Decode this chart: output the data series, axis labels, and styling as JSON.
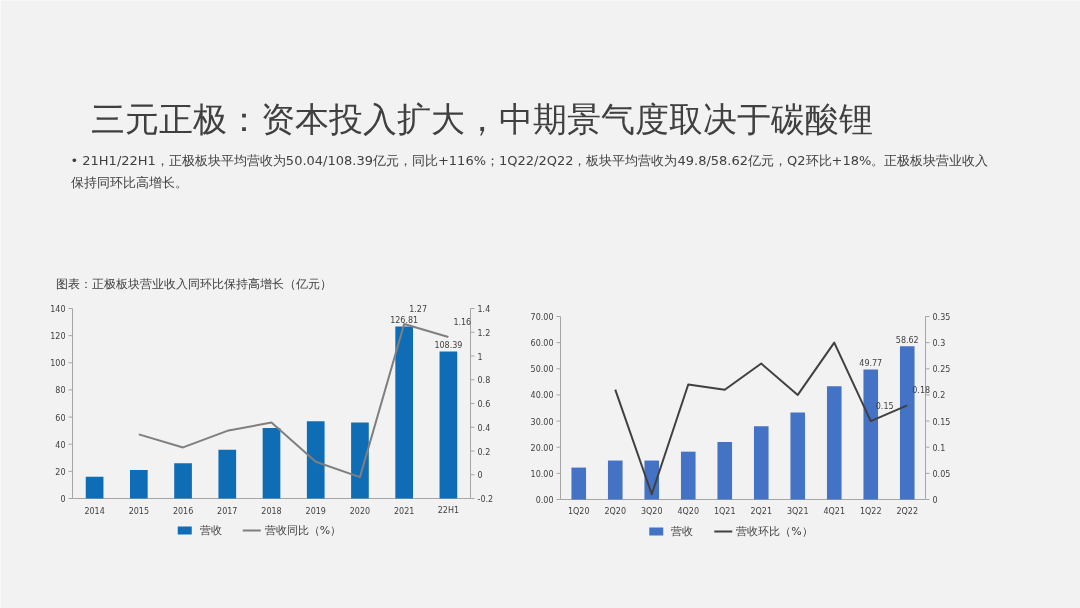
{
  "chart_data": [
    {
      "type": "bar",
      "title": "三元正极：资本投入扩大，中期景气度取决于碳酸锂",
      "subtitle": "• 21H1/22H1，正极板块平均营收为50.04/108.39亿元，同比+116%；1Q22/2Q22，板块平均营收为49.8/58.62亿元，Q2环比+18%。正极板块营业收入保持同环比高增长。",
      "annotations": [
        "图表：正极板块营业收入同环比保持高增长（亿元）"
      ],
      "categories": [
        "2014",
        "2015",
        "2016",
        "2017",
        "2018",
        "2019",
        "2020",
        "2021",
        "22H1"
      ],
      "series": [
        {
          "name": "营收",
          "color": "#0f6db5",
          "values": [
            16,
            21,
            26,
            36,
            52,
            57,
            56,
            126.81,
            108.39
          ],
          "value_labels": [
            null,
            null,
            null,
            null,
            null,
            null,
            null,
            "126.81",
            "108.39"
          ]
        },
        {
          "name": "营收同比（%）",
          "type": "line",
          "axis": "y2",
          "color": "#7f7f7f",
          "values": [
            null,
            0.34,
            0.23,
            0.37,
            0.44,
            0.11,
            -0.02,
            1.27,
            1.16
          ],
          "value_labels": [
            null,
            null,
            null,
            null,
            null,
            null,
            null,
            "1.27",
            "1.16"
          ]
        }
      ],
      "ylim": [
        0,
        140
      ],
      "yticks": [
        0,
        20,
        40,
        60,
        80,
        100,
        120,
        140
      ],
      "y2lim": [
        -0.2,
        1.4
      ],
      "y2ticks": [
        -0.2,
        0,
        0.2,
        0.4,
        0.6,
        0.8,
        1,
        1.2,
        1.4
      ],
      "grid": false,
      "legend": "bottom"
    },
    {
      "type": "bar",
      "categories": [
        "1Q20",
        "2Q20",
        "3Q20",
        "4Q20",
        "1Q21",
        "2Q21",
        "3Q21",
        "4Q21",
        "1Q22",
        "2Q22"
      ],
      "series": [
        {
          "name": "营收",
          "color": "#4472c4",
          "values": [
            12.2,
            14.9,
            14.9,
            18.3,
            22,
            28,
            33.3,
            43.3,
            49.77,
            58.62
          ],
          "value_labels": [
            null,
            null,
            null,
            null,
            null,
            null,
            null,
            null,
            "49.77",
            "58.62"
          ]
        },
        {
          "name": "营收环比（%）",
          "type": "line",
          "axis": "y2",
          "color": "#404040",
          "values": [
            null,
            0.21,
            0.01,
            0.22,
            0.21,
            0.26,
            0.2,
            0.3,
            0.15,
            0.18
          ],
          "value_labels": [
            null,
            null,
            null,
            null,
            null,
            null,
            null,
            null,
            "0.15",
            "0.18"
          ]
        }
      ],
      "ylim": [
        0,
        70
      ],
      "yticks": [
        {
          "value": 0,
          "label": "0.00"
        },
        {
          "value": 10,
          "label": "10.00"
        },
        {
          "value": 20,
          "label": "20.00"
        },
        {
          "value": 30,
          "label": "30.00"
        },
        {
          "value": 40,
          "label": "40.00"
        },
        {
          "value": 50,
          "label": "50.00"
        },
        {
          "value": 60,
          "label": "60.00"
        },
        {
          "value": 70,
          "label": "70.00"
        }
      ],
      "y2lim": [
        0,
        0.35
      ],
      "y2ticks": [
        0,
        0.05,
        0.1,
        0.15,
        0.2,
        0.25,
        0.3,
        0.35
      ],
      "grid": false,
      "legend": "bottom"
    }
  ]
}
